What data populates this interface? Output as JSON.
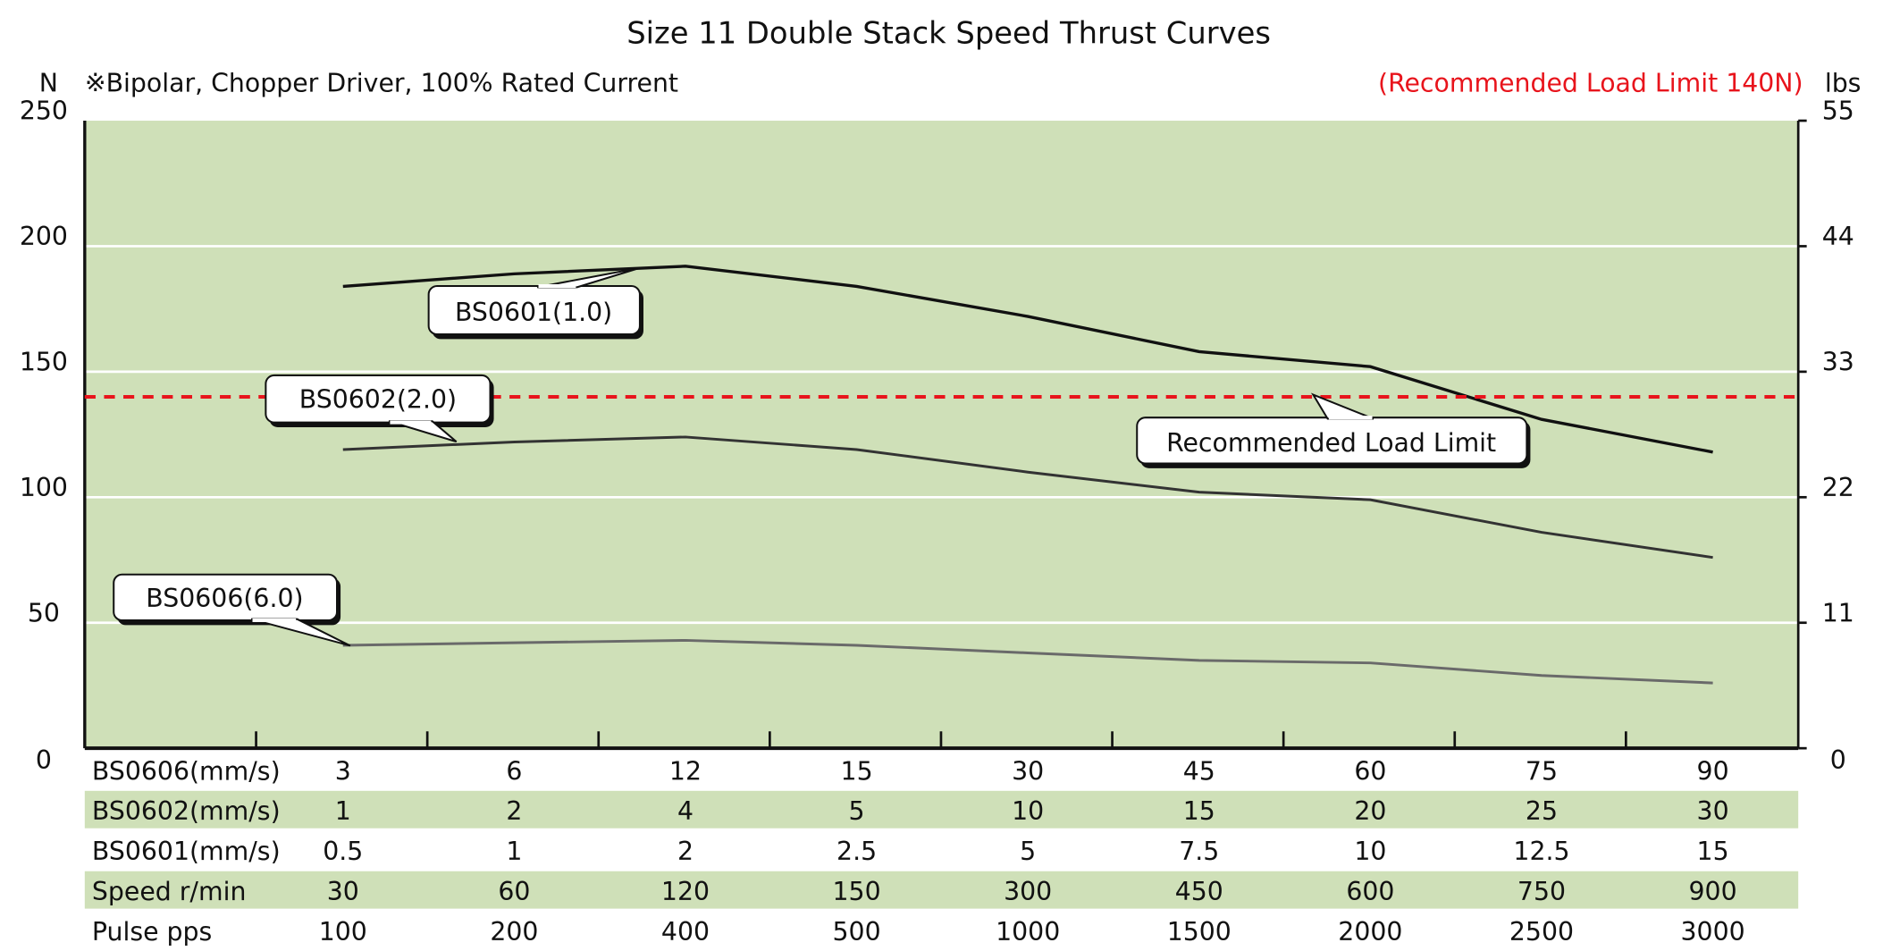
{
  "chart_data": {
    "type": "line",
    "title": "Size 11 Double Stack Speed Thrust Curves",
    "subtitle": "※Bipolar, Chopper Driver, 100% Rated Current",
    "note": "(Recommended Load Limit 140N)",
    "ylabel_left": "N",
    "ylabel_right": "lbs",
    "ylim": [
      0,
      250
    ],
    "yticks_left": [
      "0",
      "50",
      "100",
      "150",
      "200",
      "250"
    ],
    "yticks_right": [
      "0",
      "11",
      "22",
      "33",
      "44",
      "55"
    ],
    "grid": true,
    "background_color": "#cfe0b8",
    "limit": {
      "value": 140,
      "label": "Recommended Load Limit",
      "color": "#e8141c"
    },
    "series": [
      {
        "name": "BS0601(1.0)",
        "color": "#111111",
        "values": [
          184,
          189,
          192,
          184,
          172,
          158,
          152,
          131,
          118
        ]
      },
      {
        "name": "BS0602(2.0)",
        "color": "#333333",
        "values": [
          119,
          122,
          124,
          119,
          110,
          102,
          99,
          86,
          76
        ]
      },
      {
        "name": "BS0606(6.0)",
        "color": "#6a6a6a",
        "values": [
          41,
          42,
          43,
          41,
          38,
          35,
          34,
          29,
          26
        ]
      }
    ],
    "table": [
      {
        "label": "BS0606(mm/s)",
        "values": [
          "3",
          "6",
          "12",
          "15",
          "30",
          "45",
          "60",
          "75",
          "90"
        ]
      },
      {
        "label": "BS0602(mm/s)",
        "values": [
          "1",
          "2",
          "4",
          "5",
          "10",
          "15",
          "20",
          "25",
          "30"
        ]
      },
      {
        "label": "BS0601(mm/s)",
        "values": [
          "0.5",
          "1",
          "2",
          "2.5",
          "5",
          "7.5",
          "10",
          "12.5",
          "15"
        ]
      },
      {
        "label": "Speed  r/min",
        "values": [
          "30",
          "60",
          "120",
          "150",
          "300",
          "450",
          "600",
          "750",
          "900"
        ]
      },
      {
        "label": "Pulse    pps",
        "values": [
          "100",
          "200",
          "400",
          "500",
          "1000",
          "1500",
          "2000",
          "2500",
          "3000"
        ]
      }
    ]
  }
}
